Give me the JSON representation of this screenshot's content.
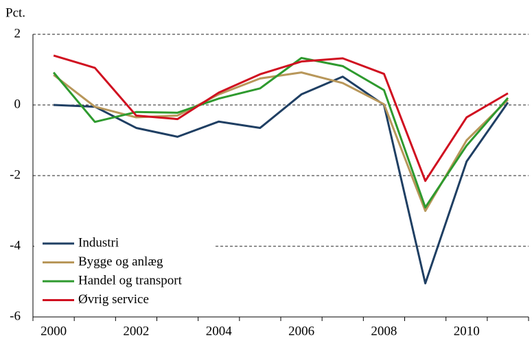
{
  "chart_data": {
    "type": "line",
    "y_label": "Pct.",
    "categories": [
      "2000",
      null,
      "2002",
      null,
      "2004",
      null,
      "2006",
      null,
      "2008",
      null,
      "2010",
      null
    ],
    "series": [
      {
        "name": "Industri",
        "color": "#1f3f63",
        "values": [
          0,
          -0.05,
          -0.65,
          -0.9,
          -0.47,
          -0.65,
          0.3,
          0.8,
          0,
          -5.05,
          -1.6,
          0.07
        ]
      },
      {
        "name": "Bygge og anlæg",
        "color": "#b8975a",
        "values": [
          0.85,
          -0.05,
          -0.35,
          -0.3,
          0.3,
          0.75,
          0.92,
          0.62,
          0.02,
          -3.0,
          -1.0,
          0.15
        ]
      },
      {
        "name": "Handel og transport",
        "color": "#2e9a2e",
        "values": [
          0.92,
          -0.48,
          -0.2,
          -0.22,
          0.18,
          0.47,
          1.33,
          1.1,
          0.42,
          -2.9,
          -1.15,
          0.2
        ]
      },
      {
        "name": "Øvrig service",
        "color": "#d01020",
        "values": [
          1.4,
          1.05,
          -0.3,
          -0.4,
          0.35,
          0.87,
          1.23,
          1.32,
          0.88,
          -2.15,
          -0.35,
          0.33
        ]
      }
    ],
    "ylim": [
      -6,
      2
    ],
    "yticks": [
      -6,
      -4,
      -2,
      0,
      2
    ],
    "grid": true,
    "legend": "lower-left"
  }
}
